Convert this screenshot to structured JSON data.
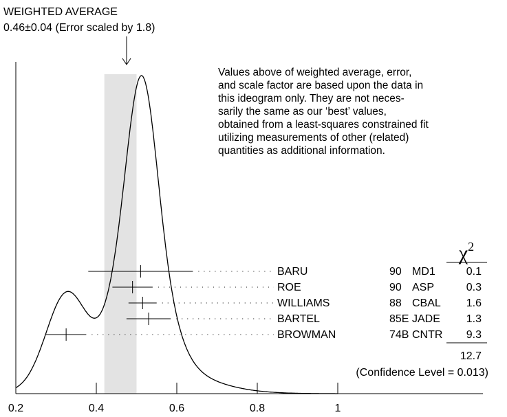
{
  "chart_data": {
    "type": "ideogram",
    "title_line1": "WEIGHTED AVERAGE",
    "title_line2": "0.46±0.04 (Error scaled by 1.8)",
    "weighted_average": 0.46,
    "weighted_error": 0.04,
    "xlim": [
      0.2,
      1.0
    ],
    "x_ticks": [
      "0.2",
      "0.4",
      "0.6",
      "0.8",
      "1"
    ],
    "note_lines": [
      "Values above of weighted average, error,",
      "and scale factor are based upon the data in",
      "this ideogram only.  They are not neces-",
      "sarily the same as our ‘best’ values,",
      "obtained from a least-squares constrained fit",
      "utilizing measurements of other (related)",
      "quantities as additional information."
    ],
    "chi2_header": "χ",
    "chi2_exponent": "2",
    "measurements": [
      {
        "author": "BARU",
        "year": "90",
        "tech": "MD1",
        "chi2": "0.1",
        "value": 0.51,
        "error": 0.13
      },
      {
        "author": "ROE",
        "year": "90",
        "tech": "ASP",
        "chi2": "0.3",
        "value": 0.49,
        "error": 0.05
      },
      {
        "author": "WILLIAMS",
        "year": "88",
        "tech": "CBAL",
        "chi2": "1.6",
        "value": 0.515,
        "error": 0.035
      },
      {
        "author": "BARTEL",
        "year": "85E",
        "tech": "JADE",
        "chi2": "1.3",
        "value": 0.53,
        "error": 0.055
      },
      {
        "author": "BROWMAN",
        "year": "74B",
        "tech": "CNTR",
        "chi2": "9.3",
        "value": 0.325,
        "error": 0.05
      }
    ],
    "chi2_total": "12.7",
    "confidence_text": "(Confidence Level = 0.013)"
  }
}
